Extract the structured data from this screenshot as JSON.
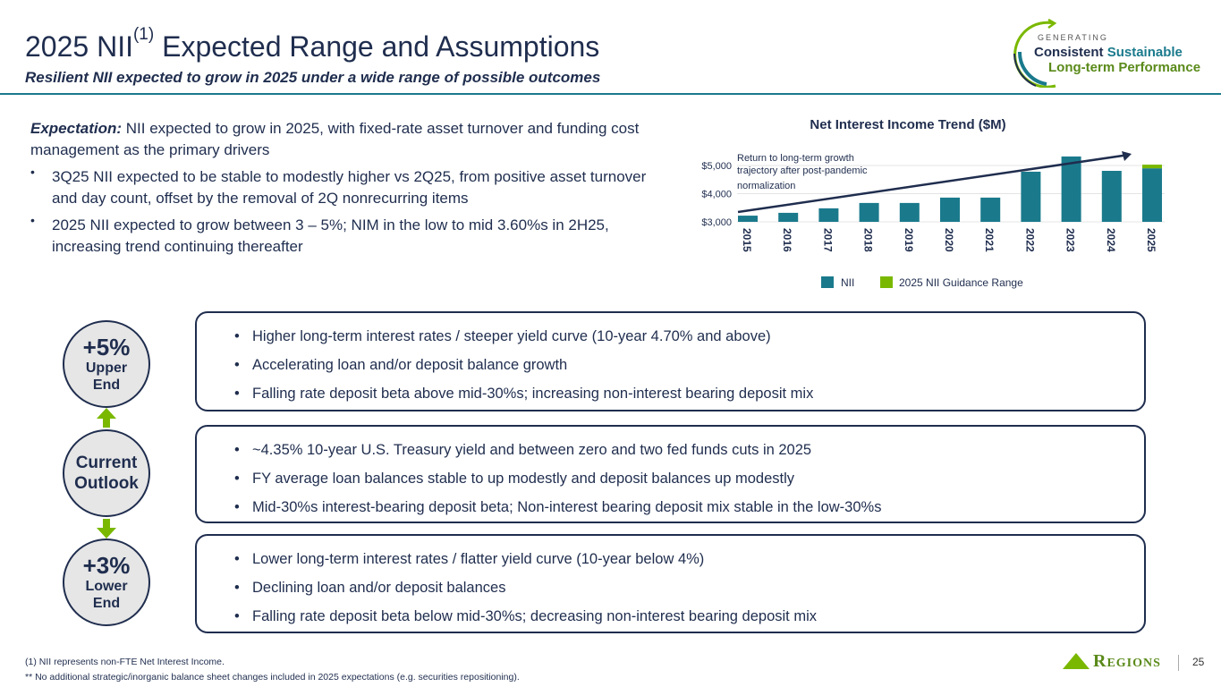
{
  "header": {
    "title": "2025 NII",
    "title_sup": "(1)",
    "title_rest": " Expected Range and Assumptions",
    "subtitle": "Resilient NII expected to grow in 2025 under a wide range of possible outcomes"
  },
  "logo": {
    "line1": "GENERATING",
    "line2a": "Consistent",
    "line2b": "Sustainable",
    "line3": "Long-term Performance"
  },
  "expectation": {
    "label": "Expectation:",
    "text": " NII expected to grow in 2025, with fixed-rate asset turnover and funding cost management as the primary drivers",
    "bullets": [
      "3Q25 NII expected to be stable to modestly higher vs 2Q25, from positive asset turnover and day count, offset by the  removal of 2Q nonrecurring items",
      "2025 NII expected to grow between 3 – 5%; NIM in the  low to mid 3.60%s in 2H25, increasing trend continuing thereafter"
    ]
  },
  "chart_data": {
    "type": "bar",
    "title": "Net Interest Income Trend ($M)",
    "categories": [
      "2015",
      "2016",
      "2017",
      "2018",
      "2019",
      "2020",
      "2021",
      "2022",
      "2023",
      "2024",
      "2025"
    ],
    "series": [
      {
        "name": "NII",
        "color": "#1a7a8c",
        "values": [
          3220,
          3320,
          3480,
          3670,
          3670,
          3860,
          3860,
          4780,
          5320,
          4810,
          4900
        ]
      },
      {
        "name": "2025 NII Guidance Range",
        "color": "#7ab800",
        "values": [
          0,
          0,
          0,
          0,
          0,
          0,
          0,
          0,
          0,
          0,
          130
        ]
      }
    ],
    "yticks": [
      "$3,000",
      "$4,000",
      "$5,000"
    ],
    "ylim": [
      3000,
      5600
    ],
    "annotation": "Return to long-term growth trajectory after post-pandemic normalization",
    "annotation_lines": [
      "Return to long-term growth",
      "trajectory after post-pandemic",
      "normalization"
    ],
    "legend": [
      "NII",
      "2025 NII Guidance Range"
    ],
    "legend_position": "bottom"
  },
  "scenarios": [
    {
      "big": "+5%",
      "l1": "Upper",
      "l2": "End",
      "bullets": [
        "Higher long-term interest rates / steeper yield curve (10-year 4.70% and above)",
        "Accelerating loan and/or deposit balance growth",
        "Falling rate deposit beta above mid-30%s; increasing non-interest bearing deposit mix"
      ]
    },
    {
      "l1": "Current",
      "l2": "Outlook",
      "bullets": [
        "~4.35% 10-year U.S. Treasury yield and between zero and two fed funds cuts in 2025",
        "FY average loan balances stable to up modestly and deposit balances up modestly",
        "Mid-30%s interest-bearing deposit beta; Non-interest bearing deposit mix stable in the low-30%s"
      ]
    },
    {
      "big": "+3%",
      "l1": "Lower",
      "l2": "End",
      "bullets": [
        "Lower long-term interest rates / flatter yield curve (10-year below 4%)",
        "Declining loan and/or deposit balances",
        "Falling rate deposit beta below mid-30%s; decreasing non-interest bearing deposit mix"
      ]
    }
  ],
  "footer": {
    "note1": "(1) NII represents non-FTE Net Interest Income.",
    "note2": "** No additional strategic/inorganic balance sheet changes included in 2025 expectations (e.g. securities repositioning).",
    "brand": "Regions",
    "page": "25"
  },
  "colors": {
    "navy": "#1f2d4e",
    "teal": "#1a7a8c",
    "green": "#7ab800"
  }
}
